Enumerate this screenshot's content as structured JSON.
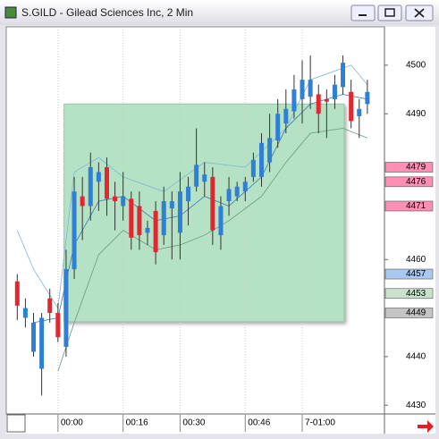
{
  "chart_data": {
    "type": "candlestick",
    "title": "S.GILD - Gilead Sciences Inc, 2 Min",
    "x": [
      -10,
      -8,
      -6,
      -4,
      -2,
      0,
      2,
      4,
      6,
      8,
      10,
      12,
      14,
      16,
      18,
      20,
      22,
      24,
      26,
      28,
      30,
      32,
      34,
      36,
      38,
      40,
      42,
      44,
      46,
      48,
      50,
      52,
      54,
      56,
      58,
      60,
      62,
      64,
      66,
      68,
      70,
      72,
      74,
      76
    ],
    "open": [
      4455.5,
      4448,
      4441,
      4437.5,
      4452,
      4449,
      4442,
      4458,
      4473,
      4471,
      4476,
      4479,
      4473,
      4471,
      4472.5,
      4471,
      4465.5,
      4470,
      4465,
      4470.5,
      4465.5,
      4472,
      4475,
      4476,
      4477,
      4465,
      4472,
      4473,
      4474,
      4477,
      4477,
      4480,
      4484.5,
      4488,
      4490.5,
      4493,
      4493.5,
      4494,
      4493,
      4493,
      4495.5,
      4494.5,
      4489.5,
      4492
    ],
    "high": [
      4457,
      4452,
      4449,
      4449,
      4454,
      4451,
      4462,
      4477,
      4477,
      4482,
      4480,
      4481,
      4476,
      4478,
      4474,
      4474,
      4468,
      4472,
      4475,
      4474,
      4478,
      4477,
      4487,
      4480,
      4479,
      4473,
      4477,
      4476,
      4477,
      4482,
      4486,
      4490,
      4493,
      4495,
      4498,
      4501,
      4502,
      4496,
      4495,
      4498,
      4502,
      4497,
      4493,
      4497
    ],
    "low": [
      4447.5,
      4446,
      4440,
      4432,
      4447,
      4443,
      4440,
      4456,
      4464,
      4468,
      4470,
      4469,
      4466,
      4468,
      4462,
      4462,
      4463,
      4459,
      4463,
      4460,
      4460,
      4467,
      4474,
      4473,
      4463,
      4462,
      4469,
      4472,
      4472,
      4476,
      4475,
      4478,
      4483,
      4486,
      4489,
      4488,
      4491,
      4486,
      4485,
      4491,
      4494,
      4487,
      4485,
      4490
    ],
    "close": [
      4450.5,
      4450,
      4447,
      4448,
      4449,
      4444,
      4458,
      4474,
      4471,
      4479,
      4478,
      4472.5,
      4472,
      4473,
      4464.5,
      4465,
      4466.5,
      4461.5,
      4472,
      4472,
      4474,
      4475,
      4479.5,
      4477.5,
      4466,
      4471,
      4474.5,
      4475,
      4476,
      4480.5,
      4484,
      4485,
      4490,
      4491,
      4495,
      4497,
      4497,
      4490,
      4492.5,
      4496,
      4500.5,
      4488.5,
      4491,
      4494.5
    ],
    "up_color": "#2f7fd4",
    "down_color": "#e3262f",
    "overlays": [
      {
        "color": "#7fb4d8",
        "x": [
          -10,
          -6,
          0,
          4,
          10,
          16,
          26,
          36,
          46,
          56,
          62,
          72,
          76
        ],
        "values": [
          4466,
          4458,
          4450,
          4478,
          4481,
          4477,
          4474,
          4480,
          4479,
          4487,
          4497,
          4500,
          4496
        ]
      },
      {
        "color": "#3c78b4",
        "x": [
          -6,
          0,
          4,
          10,
          16,
          24,
          30,
          36,
          42,
          50,
          56,
          62,
          70,
          76
        ],
        "values": [
          4447,
          4448,
          4463,
          4472,
          4473,
          4468,
          4469,
          4473,
          4471,
          4477,
          4487,
          4492,
          4494,
          4493
        ]
      },
      {
        "color": "#6a9a7a",
        "x": [
          0,
          4,
          10,
          16,
          24,
          30,
          36,
          42,
          50,
          56,
          62,
          70,
          76
        ],
        "values": [
          4437,
          4447,
          4461,
          4466,
          4462,
          4463,
          4465,
          4468,
          4473,
          4480,
          4486,
          4487,
          4485
        ]
      }
    ],
    "highlight": {
      "x": [
        1.5,
        70.3
      ],
      "y": [
        4447.2,
        4492
      ],
      "color": "#b5e2c4"
    },
    "price_markers": [
      {
        "value": 4479,
        "color": "#ff8fb5"
      },
      {
        "value": 4476,
        "color": "#ff8fb5"
      },
      {
        "value": 4471,
        "color": "#ff8fb5"
      },
      {
        "value": 4457,
        "color": "#a9c9f0"
      },
      {
        "value": 4453,
        "color": "#c8e2cc"
      },
      {
        "value": 4449,
        "color": "#c4c4c4"
      }
    ],
    "xlim": [
      -12.7,
      80.2
    ],
    "xticks": [
      {
        "value": 0,
        "label": "00:00"
      },
      {
        "value": 16,
        "label": "00:16"
      },
      {
        "value": 30,
        "label": "00:30"
      },
      {
        "value": 46,
        "label": "00:46"
      },
      {
        "value": 60,
        "label": "7-01:00"
      }
    ],
    "ylim": [
      4428.2,
      4507.9
    ],
    "yticks": [
      4500,
      4490,
      4460,
      4440,
      4430
    ],
    "grid": true
  }
}
